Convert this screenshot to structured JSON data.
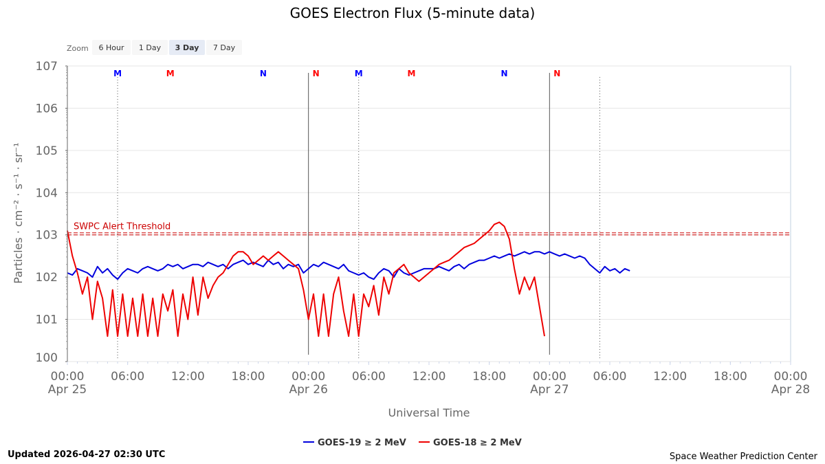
{
  "chart_data": {
    "type": "line",
    "title": "GOES Electron Flux (5-minute data)",
    "xlabel": "Universal Time",
    "ylabel": "Particles · cm⁻² · s⁻¹ · sr⁻¹",
    "y_scale": "log",
    "ylim": [
      0,
      7
    ],
    "y_ticks": [
      {
        "exp": 0,
        "label": "100"
      },
      {
        "exp": 1,
        "label": "101"
      },
      {
        "exp": 2,
        "label": "102"
      },
      {
        "exp": 3,
        "label": "103"
      },
      {
        "exp": 4,
        "label": "104"
      },
      {
        "exp": 5,
        "label": "105"
      },
      {
        "exp": 6,
        "label": "106"
      },
      {
        "exp": 7,
        "label": "107"
      }
    ],
    "xlim": [
      "2026-04-25T00:00Z",
      "2026-04-28T00:00Z"
    ],
    "x_ticks": [
      {
        "t": "2026-04-25T00:00Z",
        "time": "00:00",
        "date": "Apr 25"
      },
      {
        "t": "2026-04-25T06:00Z",
        "time": "06:00",
        "date": ""
      },
      {
        "t": "2026-04-25T12:00Z",
        "time": "12:00",
        "date": ""
      },
      {
        "t": "2026-04-25T18:00Z",
        "time": "18:00",
        "date": ""
      },
      {
        "t": "2026-04-26T00:00Z",
        "time": "00:00",
        "date": "Apr 26"
      },
      {
        "t": "2026-04-26T06:00Z",
        "time": "06:00",
        "date": ""
      },
      {
        "t": "2026-04-26T12:00Z",
        "time": "12:00",
        "date": ""
      },
      {
        "t": "2026-04-26T18:00Z",
        "time": "18:00",
        "date": ""
      },
      {
        "t": "2026-04-27T00:00Z",
        "time": "00:00",
        "date": "Apr 27"
      },
      {
        "t": "2026-04-27T06:00Z",
        "time": "06:00",
        "date": ""
      },
      {
        "t": "2026-04-27T12:00Z",
        "time": "12:00",
        "date": ""
      },
      {
        "t": "2026-04-27T18:00Z",
        "time": "18:00",
        "date": ""
      },
      {
        "t": "2026-04-28T00:00Z",
        "time": "00:00",
        "date": "Apr 28"
      }
    ],
    "day_lines": [
      "2026-04-26T00:00Z",
      "2026-04-27T00:00Z"
    ],
    "dotted_lines": [
      "2026-04-25T05:00Z",
      "2026-04-26T05:00Z",
      "2026-04-27T05:00Z"
    ],
    "markers": [
      {
        "t": "2026-04-25T05:00Z",
        "label": "M",
        "color": "#0000ff"
      },
      {
        "t": "2026-04-25T10:15Z",
        "label": "M",
        "color": "#ff0000"
      },
      {
        "t": "2026-04-25T19:30Z",
        "label": "N",
        "color": "#0000ff"
      },
      {
        "t": "2026-04-25T24:45Z",
        "label": "N",
        "color": "#ff0000"
      },
      {
        "t": "2026-04-26T05:00Z",
        "label": "M",
        "color": "#0000ff"
      },
      {
        "t": "2026-04-26T10:15Z",
        "label": "M",
        "color": "#ff0000"
      },
      {
        "t": "2026-04-26T19:30Z",
        "label": "N",
        "color": "#0000ff"
      },
      {
        "t": "2026-04-26T24:45Z",
        "label": "N",
        "color": "#ff0000"
      }
    ],
    "threshold": {
      "value": 1000,
      "label": "SWPC Alert Threshold",
      "color": "#cc0000"
    },
    "series": [
      {
        "name": "GOES-19 ≥ 2 MeV",
        "color": "#0000dd",
        "start": "2026-04-25T00:00Z",
        "step_minutes": 30,
        "log10_values": [
          2.1,
          2.05,
          2.2,
          2.15,
          2.1,
          2.0,
          2.25,
          2.1,
          2.2,
          2.05,
          1.95,
          2.1,
          2.2,
          2.15,
          2.1,
          2.2,
          2.25,
          2.2,
          2.15,
          2.2,
          2.3,
          2.25,
          2.3,
          2.2,
          2.25,
          2.3,
          2.3,
          2.25,
          2.35,
          2.3,
          2.25,
          2.3,
          2.2,
          2.3,
          2.35,
          2.4,
          2.3,
          2.35,
          2.3,
          2.25,
          2.4,
          2.3,
          2.35,
          2.2,
          2.3,
          2.25,
          2.3,
          2.1,
          2.2,
          2.3,
          2.25,
          2.35,
          2.3,
          2.25,
          2.2,
          2.3,
          2.15,
          2.1,
          2.05,
          2.1,
          2.0,
          1.95,
          2.1,
          2.2,
          2.15,
          2.0,
          2.2,
          2.1,
          2.05,
          2.1,
          2.15,
          2.2,
          2.2,
          2.2,
          2.25,
          2.2,
          2.15,
          2.25,
          2.3,
          2.2,
          2.3,
          2.35,
          2.4,
          2.4,
          2.45,
          2.5,
          2.45,
          2.5,
          2.55,
          2.5,
          2.55,
          2.6,
          2.55,
          2.6,
          2.6,
          2.55,
          2.6,
          2.55,
          2.5,
          2.55,
          2.5,
          2.45,
          2.5,
          2.45,
          2.3,
          2.2,
          2.1,
          2.25,
          2.15,
          2.2,
          2.1,
          2.2,
          2.15
        ],
        "legend": "GOES-19 ≥ 2 MeV"
      },
      {
        "name": "GOES-18 ≥ 2 MeV",
        "color": "#ee0000",
        "start": "2026-04-25T00:00Z",
        "step_minutes": 30,
        "log10_values": [
          3.1,
          2.5,
          2.1,
          1.6,
          2.0,
          1.0,
          1.9,
          1.5,
          0.6,
          1.7,
          0.6,
          1.6,
          0.6,
          1.5,
          0.6,
          1.6,
          0.6,
          1.5,
          0.6,
          1.6,
          1.2,
          1.7,
          0.6,
          1.6,
          1.0,
          2.0,
          1.1,
          2.0,
          1.5,
          1.8,
          2.0,
          2.1,
          2.3,
          2.5,
          2.6,
          2.6,
          2.5,
          2.3,
          2.4,
          2.5,
          2.4,
          2.5,
          2.6,
          2.5,
          2.4,
          2.3,
          2.2,
          1.7,
          1.0,
          1.6,
          0.6,
          1.6,
          0.6,
          1.6,
          2.0,
          1.2,
          0.6,
          1.6,
          0.6,
          1.6,
          1.3,
          1.8,
          1.1,
          2.0,
          1.6,
          2.1,
          2.2,
          2.3,
          2.1,
          2.0,
          1.9,
          2.0,
          2.1,
          2.2,
          2.3,
          2.35,
          2.4,
          2.5,
          2.6,
          2.7,
          2.75,
          2.8,
          2.9,
          3.0,
          3.1,
          3.25,
          3.3,
          3.2,
          2.9,
          2.2,
          1.6,
          2.0,
          1.7,
          2.0,
          1.3,
          0.6
        ],
        "legend": "GOES-18 ≥ 2 MeV"
      }
    ],
    "legend_position": "bottom-center",
    "grid": true
  },
  "zoom": {
    "label": "Zoom",
    "buttons": [
      {
        "label": "6 Hour",
        "selected": false
      },
      {
        "label": "1 Day",
        "selected": false
      },
      {
        "label": "3 Day",
        "selected": true
      },
      {
        "label": "7 Day",
        "selected": false
      }
    ]
  },
  "footer": {
    "updated": "Updated 2026-04-27 02:30 UTC",
    "credit": "Space Weather Prediction Center"
  }
}
